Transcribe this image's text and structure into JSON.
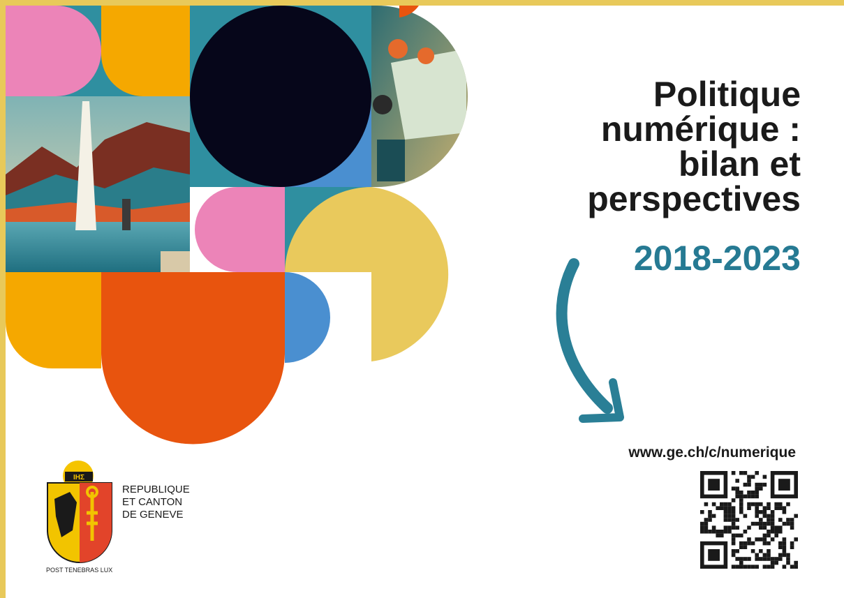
{
  "title": {
    "lines": [
      "Politique",
      "numérique :",
      "bilan et",
      "perspectives"
    ],
    "years": "2018-2023"
  },
  "url": "www.ge.ch/c/numerique",
  "logo": {
    "emblem": "IHΣ",
    "name_lines": [
      "REPUBLIQUE",
      "ET CANTON",
      "DE GENEVE"
    ],
    "motto": "POST TENEBRAS LUX"
  }
}
